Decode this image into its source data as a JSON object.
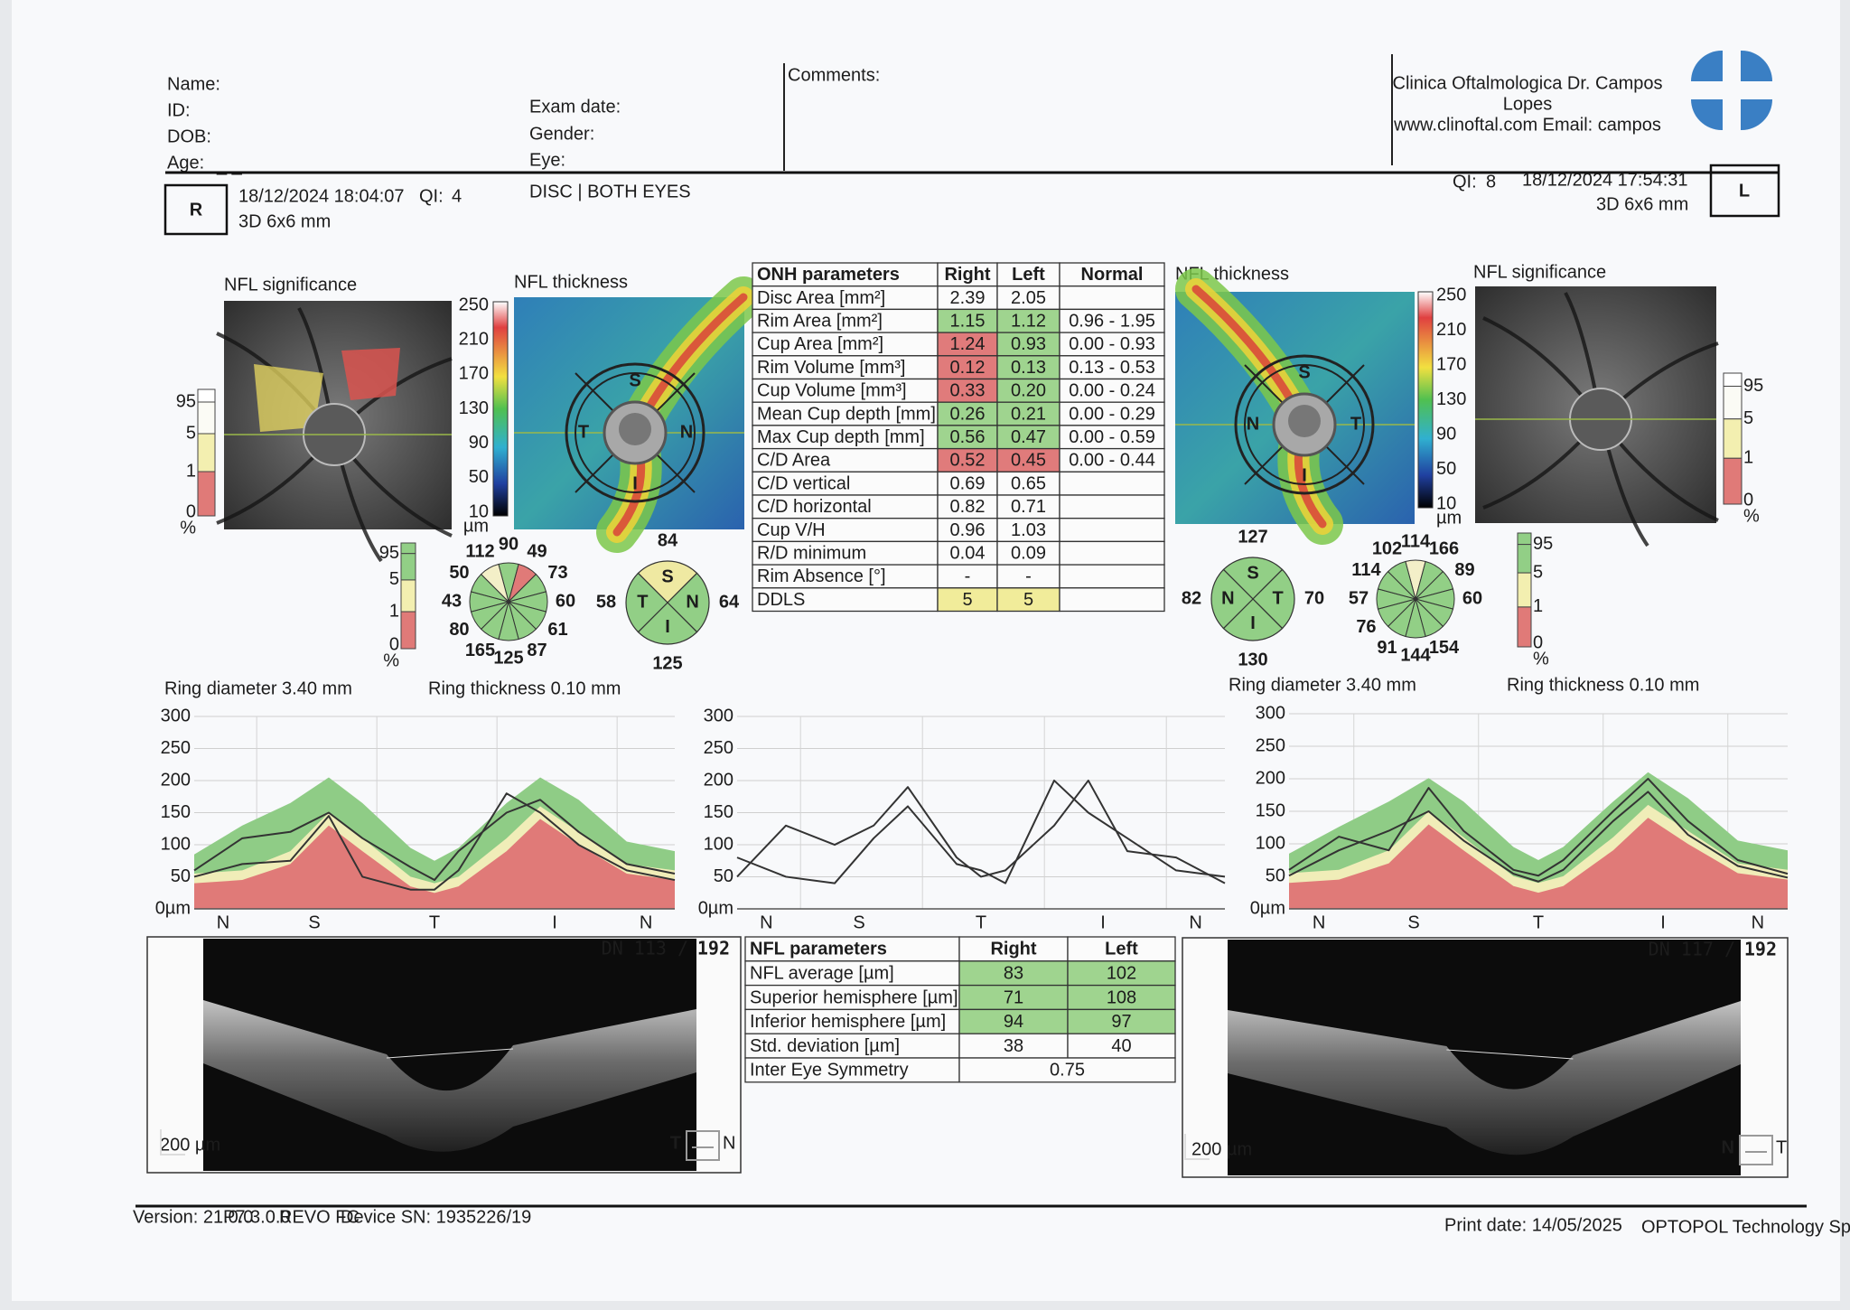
{
  "header": {
    "name_label": "Name:",
    "id_label": "ID:",
    "dob_label": "DOB:",
    "age_label": "Age:",
    "age_value": "_ _",
    "exam_date_label": "Exam date:",
    "gender_label": "Gender:",
    "eye_label": "Eye:",
    "comments_label": "Comments:",
    "clinic": [
      "Clinica Oftalmologica Dr. Campos",
      "Lopes",
      "www.clinoftal.com Email: campos"
    ],
    "protocol": "DISC | BOTH EYES"
  },
  "right_eye": {
    "side": "R",
    "datetime": "18/12/2024 18:04:07",
    "qi_label": "QI:",
    "qi": "4",
    "qi_color": "#b03a48",
    "scan": "3D  6x6 mm",
    "significance_title": "NFL significance",
    "thickness_title": "NFL thickness",
    "map_labels": {
      "top": "S",
      "right": "N",
      "bottom": "I",
      "left": "T"
    },
    "clock": {
      "values": [
        "90",
        "49",
        "73",
        "60",
        "61",
        "87",
        "125",
        "165",
        "80",
        "43",
        "50",
        "112"
      ],
      "colors": [
        "#92cf86",
        "#e07a78",
        "#92cf86",
        "#92cf86",
        "#92cf86",
        "#92cf86",
        "#92cf86",
        "#92cf86",
        "#92cf86",
        "#92cf86",
        "#92cf86",
        "#f3efc8"
      ]
    },
    "quadrant": {
      "labels": [
        "S",
        "N",
        "I",
        "T"
      ],
      "values": [
        "84",
        "64",
        "125",
        "58"
      ],
      "colors": [
        "#efe9a2",
        "#92cf86",
        "#92cf86",
        "#92cf86"
      ]
    },
    "ring_diameter": "Ring diameter  3.40 mm",
    "ring_thickness": "Ring thickness  0.10 mm",
    "bscan": {
      "slice": "DN  113 /",
      "total": "192",
      "scale": "200 µm",
      "dir_left": "T",
      "dir_right": "N"
    }
  },
  "left_eye": {
    "side": "L",
    "datetime": "18/12/2024 17:54:31",
    "qi_label": "QI:",
    "qi": "8",
    "qi_color": "#4f9a55",
    "scan": "3D  6x6 mm",
    "significance_title": "NFL significance",
    "thickness_title": "NFL thickness",
    "map_labels": {
      "top": "S",
      "right": "T",
      "bottom": "I",
      "left": "N"
    },
    "clock": {
      "values": [
        "114",
        "166",
        "89",
        "60",
        null,
        "154",
        "144",
        "91",
        "76",
        "57",
        "114",
        "102"
      ],
      "colors": [
        "#f3efc8",
        "#92cf86",
        "#92cf86",
        "#92cf86",
        "#92cf86",
        "#92cf86",
        "#92cf86",
        "#92cf86",
        "#92cf86",
        "#92cf86",
        "#92cf86",
        "#92cf86"
      ]
    },
    "quadrant": {
      "labels": [
        "S",
        "T",
        "I",
        "N"
      ],
      "values": [
        "127",
        "70",
        "130",
        "82"
      ],
      "colors": [
        "#92cf86",
        "#92cf86",
        "#92cf86",
        "#92cf86"
      ]
    },
    "ring_diameter": "Ring diameter  3.40 mm",
    "ring_thickness": "Ring thickness  0.10 mm",
    "bscan": {
      "slice": "DN  117 /",
      "total": "192",
      "scale": "200 µm",
      "dir_left": "N",
      "dir_right": "T"
    }
  },
  "thickness_scale": {
    "ticks": [
      "250",
      "210",
      "170",
      "130",
      "90",
      "50",
      "10"
    ],
    "unit": "µm"
  },
  "significance_scale": [
    "95",
    "5",
    "1",
    "0",
    "%"
  ],
  "onh_table": {
    "header": [
      "ONH parameters",
      "Right",
      "Left",
      "Normal"
    ],
    "rows": [
      {
        "cells": [
          "Disc Area [mm²]",
          "2.39",
          "2.05"
        ],
        "colors": [
          null,
          null
        ]
      },
      {
        "cells": [
          "Rim Area [mm²]",
          "1.15",
          "1.12",
          "0.96 - 1.95"
        ],
        "colors": [
          "#9fd48f",
          "#9fd48f"
        ]
      },
      {
        "cells": [
          "Cup Area [mm²]",
          "1.24",
          "0.93",
          "0.00 - 0.93"
        ],
        "colors": [
          "#e07b7b",
          "#9fd48f"
        ]
      },
      {
        "cells": [
          "Rim Volume [mm³]",
          "0.12",
          "0.13",
          "0.13 - 0.53"
        ],
        "colors": [
          "#e07b7b",
          "#9fd48f"
        ]
      },
      {
        "cells": [
          "Cup Volume [mm³]",
          "0.33",
          "0.20",
          "0.00 - 0.24"
        ],
        "colors": [
          "#e07b7b",
          "#9fd48f"
        ]
      },
      {
        "cells": [
          "Mean Cup depth [mm]",
          "0.26",
          "0.21",
          "0.00 - 0.29"
        ],
        "colors": [
          "#9fd48f",
          "#9fd48f"
        ]
      },
      {
        "cells": [
          "Max Cup depth [mm]",
          "0.56",
          "0.47",
          "0.00 - 0.59"
        ],
        "colors": [
          "#9fd48f",
          "#9fd48f"
        ]
      },
      {
        "cells": [
          "C/D Area",
          "0.52",
          "0.45",
          "0.00 - 0.44"
        ],
        "colors": [
          "#e07b7b",
          "#e07b7b"
        ]
      },
      {
        "cells": [
          "C/D vertical",
          "0.69",
          "0.65"
        ],
        "colors": [
          null,
          null
        ]
      },
      {
        "cells": [
          "C/D horizontal",
          "0.82",
          "0.71"
        ],
        "colors": [
          null,
          null
        ]
      },
      {
        "cells": [
          "Cup V/H",
          "0.96",
          "1.03"
        ],
        "colors": [
          null,
          null
        ]
      },
      {
        "cells": [
          "R/D minimum",
          "0.04",
          "0.09"
        ],
        "colors": [
          null,
          null
        ]
      },
      {
        "cells": [
          "Rim Absence [°]",
          "-",
          "-"
        ],
        "colors": [
          null,
          null
        ]
      },
      {
        "cells": [
          "DDLS",
          "5",
          "5"
        ],
        "colors": [
          "#f1ec9a",
          "#f1ec9a"
        ]
      }
    ]
  },
  "nfl_table": {
    "header": [
      "NFL parameters",
      "Right",
      "Left"
    ],
    "rows": [
      {
        "cells": [
          "NFL average [µm]",
          "83",
          "102"
        ],
        "colors": [
          "#9fd48f",
          "#9fd48f"
        ]
      },
      {
        "cells": [
          "Superior hemisphere [µm]",
          "71",
          "108"
        ],
        "colors": [
          "#9fd48f",
          "#9fd48f"
        ]
      },
      {
        "cells": [
          "Inferior hemisphere [µm]",
          "94",
          "97"
        ],
        "colors": [
          "#9fd48f",
          "#9fd48f"
        ]
      },
      {
        "cells": [
          "Std. deviation [µm]",
          "38",
          "40"
        ],
        "colors": [
          null,
          null
        ]
      }
    ],
    "symmetry": [
      "Inter Eye Symmetry",
      "0.75"
    ]
  },
  "tsnit": {
    "ylim": [
      0,
      300
    ],
    "yticks": [
      {
        "value": 0,
        "label": "0µm"
      },
      50,
      100,
      150,
      200,
      250,
      300
    ],
    "xlabels": [
      "N",
      "S",
      "T",
      "I",
      "N"
    ]
  },
  "footer": {
    "version": "Version: 21.0.0",
    "build": "P7.3.0.0",
    "device": "REVO FC",
    "serial": "Device SN: 1935226/19",
    "print_date": "Print date: 14/05/2025",
    "company": "OPTOPOL Technology Sp. z o.o."
  }
}
